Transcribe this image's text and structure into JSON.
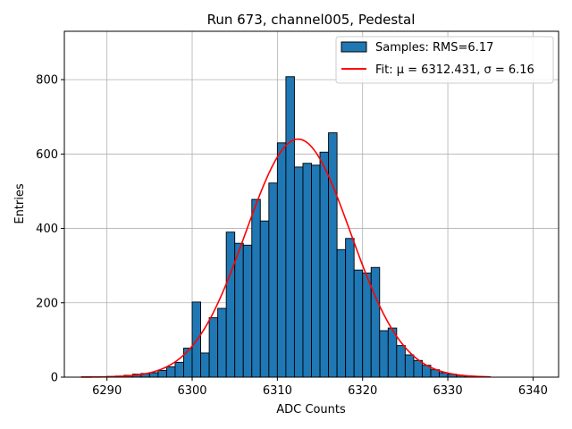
{
  "chart_data": {
    "type": "bar",
    "title": "Run 673, channel005, Pedestal",
    "xlabel": "ADC Counts",
    "ylabel": "Entries",
    "xlim": [
      6285,
      6343
    ],
    "ylim": [
      0,
      930
    ],
    "xticks": [
      6290,
      6300,
      6310,
      6320,
      6330,
      6340
    ],
    "xtick_labels": [
      "6290",
      "6300",
      "6310",
      "6320",
      "6330",
      "6340"
    ],
    "yticks": [
      0,
      200,
      400,
      600,
      800
    ],
    "ytick_labels": [
      "0",
      "200",
      "400",
      "600",
      "800"
    ],
    "grid": true,
    "legend_position": "top-right",
    "bin_width": 1,
    "series": [
      {
        "name": "Samples: RMS=6.17",
        "kind": "histogram",
        "color": "#1f77b4",
        "edgecolor": "#000000",
        "bin_starts": [
          6287,
          6288,
          6289,
          6290,
          6291,
          6292,
          6293,
          6294,
          6295,
          6296,
          6297,
          6298,
          6299,
          6300,
          6301,
          6302,
          6303,
          6304,
          6305,
          6306,
          6307,
          6308,
          6309,
          6310,
          6311,
          6312,
          6313,
          6314,
          6315,
          6316,
          6317,
          6318,
          6319,
          6320,
          6321,
          6322,
          6323,
          6324,
          6325,
          6326,
          6327,
          6328,
          6329,
          6330,
          6331,
          6332,
          6333,
          6334
        ],
        "values": [
          1,
          1,
          1,
          2,
          3,
          5,
          8,
          10,
          12,
          18,
          28,
          40,
          78,
          202,
          65,
          160,
          185,
          390,
          360,
          355,
          478,
          420,
          522,
          630,
          808,
          565,
          575,
          570,
          605,
          657,
          343,
          373,
          288,
          280,
          295,
          125,
          132,
          85,
          60,
          45,
          32,
          20,
          12,
          8,
          5,
          3,
          2,
          1
        ]
      },
      {
        "name": "Fit: μ = 6312.431, σ = 6.16",
        "kind": "gaussian",
        "color": "#ff0000",
        "mu": 6312.431,
        "sigma": 6.16,
        "amplitude": 640,
        "x_range": [
          6287,
          6335
        ]
      }
    ]
  }
}
